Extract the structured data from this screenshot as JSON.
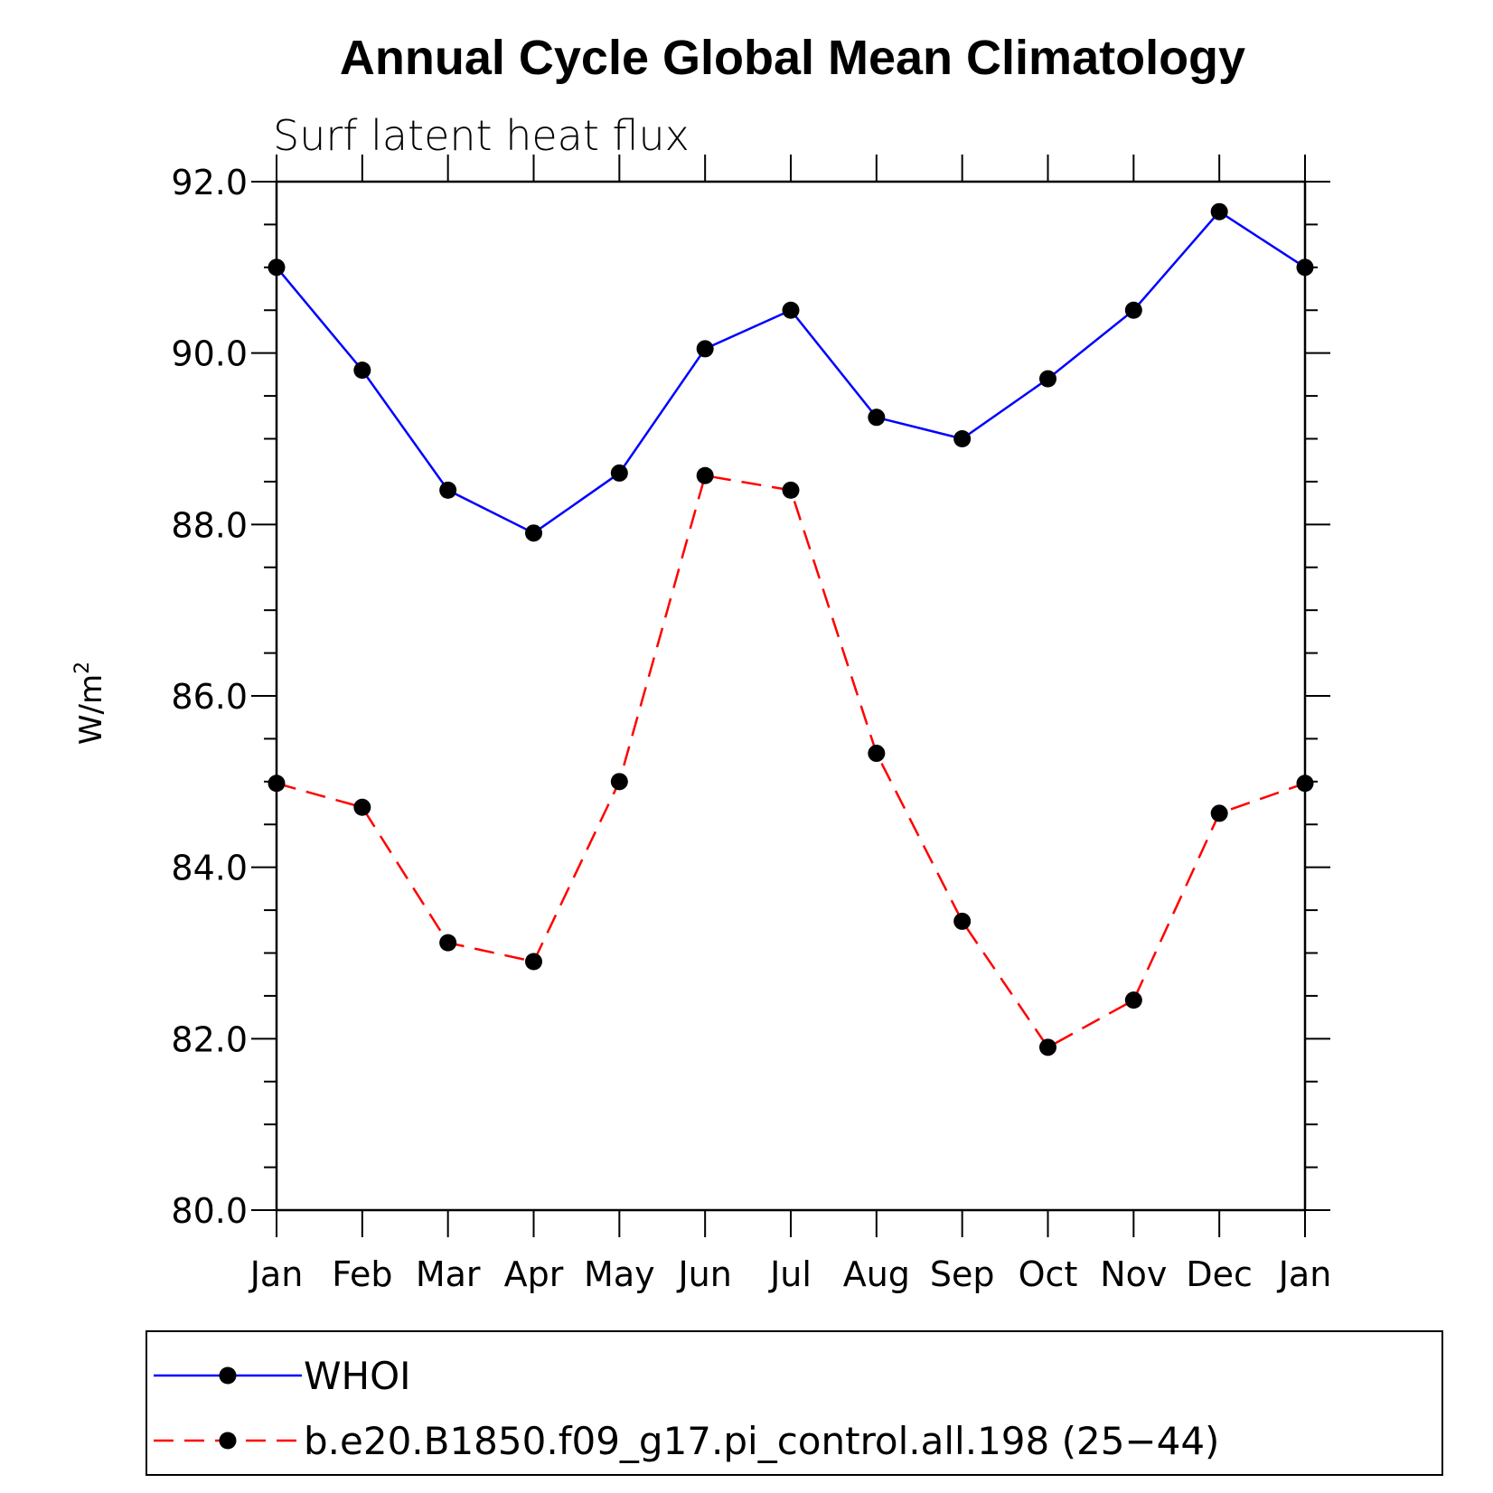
{
  "chart_data": {
    "type": "line",
    "title": "Annual Cycle Global Mean Climatology",
    "subtitle": "Surf latent heat flux",
    "xlabel": "",
    "ylabel": "W/m",
    "ylabel_superscript": "2",
    "categories": [
      "Jan",
      "Feb",
      "Mar",
      "Apr",
      "May",
      "Jun",
      "Jul",
      "Aug",
      "Sep",
      "Oct",
      "Nov",
      "Dec",
      "Jan"
    ],
    "ylim": [
      80.0,
      92.0
    ],
    "yticks": [
      "80.0",
      "82.0",
      "84.0",
      "86.0",
      "88.0",
      "90.0",
      "92.0"
    ],
    "grid": false,
    "legend_position": "bottom",
    "series": [
      {
        "name": "WHOI",
        "color": "#0000ff",
        "dash": "solid",
        "marker": "filled-circle",
        "values": [
          91.0,
          89.8,
          88.4,
          87.9,
          88.6,
          90.05,
          90.5,
          89.25,
          89.0,
          89.7,
          90.5,
          91.65,
          91.0
        ]
      },
      {
        "name": "b.e20.B1850.f09_g17.pi_control.all.198 (25−44)",
        "color": "#ff0000",
        "dash": "dashed",
        "marker": "filled-circle",
        "values": [
          84.98,
          84.7,
          83.12,
          82.9,
          85.0,
          88.57,
          88.4,
          85.33,
          83.37,
          81.9,
          82.45,
          84.63,
          84.98
        ]
      }
    ]
  }
}
